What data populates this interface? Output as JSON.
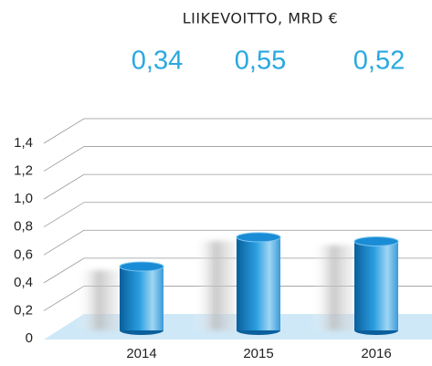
{
  "chart_data": {
    "type": "bar",
    "title": "LIIKEVOITTO, MRD €",
    "categories": [
      "2014",
      "2015",
      "2016"
    ],
    "values": [
      0.34,
      0.55,
      0.52
    ],
    "value_labels": [
      "0,34",
      "0,55",
      "0,52"
    ],
    "color": "#1f8fd0",
    "ylim": [
      0,
      1.4
    ],
    "yticks": [
      0,
      {
        "value": 0.2,
        "label": "0,2"
      },
      {
        "value": 0.4,
        "label": "0,4"
      },
      {
        "value": 0.6,
        "label": "0,6"
      },
      {
        "value": 0.8,
        "label": "0,8"
      },
      {
        "value": 1.0,
        "label": "1,0"
      },
      {
        "value": 1.2,
        "label": "1,2"
      },
      {
        "value": 1.4,
        "label": "1,4"
      }
    ],
    "grid": true
  }
}
